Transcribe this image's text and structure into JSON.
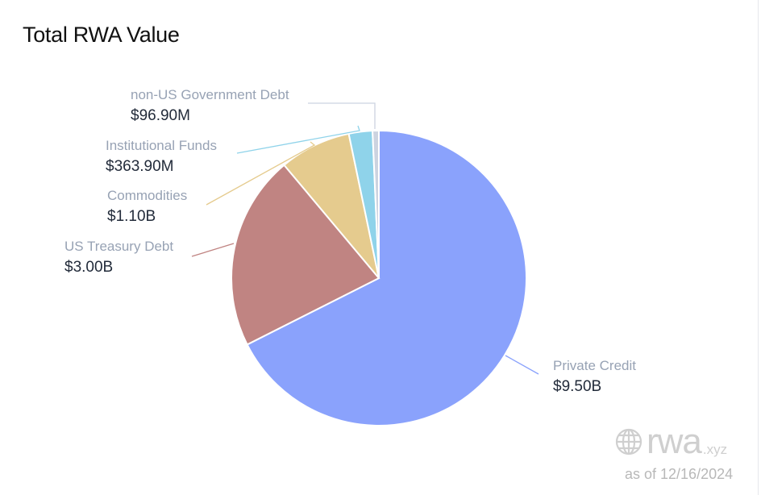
{
  "title": "Total RWA Value",
  "chart_data": {
    "type": "pie",
    "title": "Total RWA Value",
    "start": "top",
    "direction": "clockwise",
    "slices": [
      {
        "name": "Private Credit",
        "label": "$9.50B",
        "value": 9.5,
        "color": "#8aa2fc"
      },
      {
        "name": "US Treasury Debt",
        "label": "$3.00B",
        "value": 3.0,
        "color": "#c08482"
      },
      {
        "name": "Commodities",
        "label": "$1.10B",
        "value": 1.1,
        "color": "#e5cb8e"
      },
      {
        "name": "Institutional Funds",
        "label": "$363.90M",
        "value": 0.3639,
        "color": "#8fd3ea"
      },
      {
        "name": "non-US Government Debt",
        "label": "$96.90M",
        "value": 0.0969,
        "color": "#ccd3e0"
      }
    ],
    "unit": "USD billions"
  },
  "footer": {
    "logo_main": "rwa",
    "logo_suffix": ".xyz",
    "as_of": "as of 12/16/2024"
  }
}
